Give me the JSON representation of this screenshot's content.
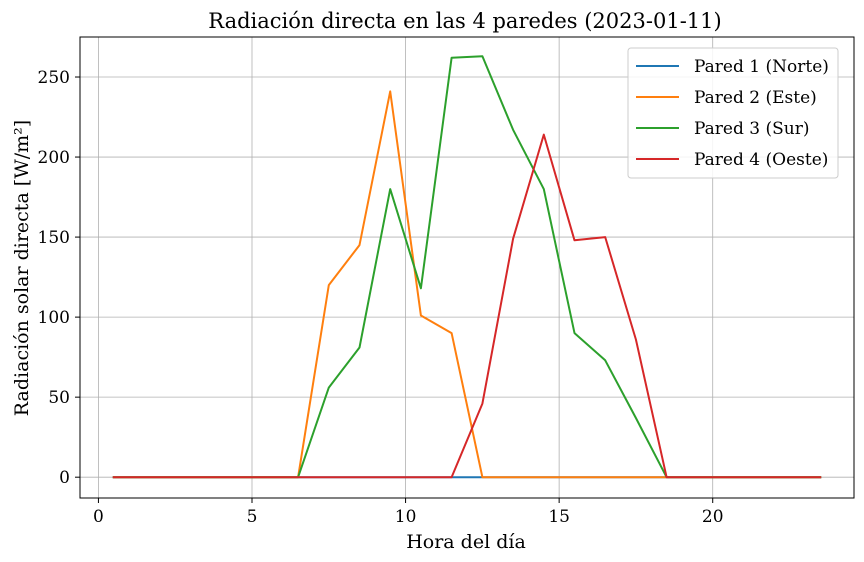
{
  "chart_data": {
    "type": "line",
    "title": "Radiación directa en las 4 paredes (2023-01-11)",
    "xlabel": "Hora del día",
    "ylabel": "Radiación solar directa [W/m²]",
    "xlim": [
      -0.6,
      24.6
    ],
    "ylim": [
      -13,
      275
    ],
    "xticks": [
      0,
      5,
      10,
      15,
      20
    ],
    "yticks": [
      0,
      50,
      100,
      150,
      200,
      250
    ],
    "grid": true,
    "legend_position": "top-right",
    "x": [
      0.5,
      1.5,
      2.5,
      3.5,
      4.5,
      5.5,
      6.5,
      7.5,
      8.5,
      9.5,
      10.5,
      11.5,
      12.5,
      13.5,
      14.5,
      15.5,
      16.5,
      17.5,
      18.5,
      19.5,
      20.5,
      21.5,
      22.5,
      23.5
    ],
    "series": [
      {
        "name": "Pared 1 (Norte)",
        "color": "#1f77b4",
        "values": [
          0,
          0,
          0,
          0,
          0,
          0,
          0,
          0,
          0,
          0,
          0,
          0,
          0,
          0,
          0,
          0,
          0,
          0,
          0,
          0,
          0,
          0,
          0,
          0
        ]
      },
      {
        "name": "Pared 2 (Este)",
        "color": "#ff7f0e",
        "values": [
          0,
          0,
          0,
          0,
          0,
          0,
          0,
          120,
          145,
          241,
          101,
          90,
          0,
          0,
          0,
          0,
          0,
          0,
          0,
          0,
          0,
          0,
          0,
          0
        ]
      },
      {
        "name": "Pared 3 (Sur)",
        "color": "#2ca02c",
        "values": [
          0,
          0,
          0,
          0,
          0,
          0,
          0,
          56,
          81,
          180,
          118,
          262,
          263,
          217,
          180,
          90,
          73,
          37,
          0,
          0,
          0,
          0,
          0,
          0
        ]
      },
      {
        "name": "Pared 4 (Oeste)",
        "color": "#d62728",
        "values": [
          0,
          0,
          0,
          0,
          0,
          0,
          0,
          0,
          0,
          0,
          0,
          0,
          46,
          149,
          214,
          148,
          150,
          86,
          0,
          0,
          0,
          0,
          0,
          0
        ]
      }
    ]
  }
}
